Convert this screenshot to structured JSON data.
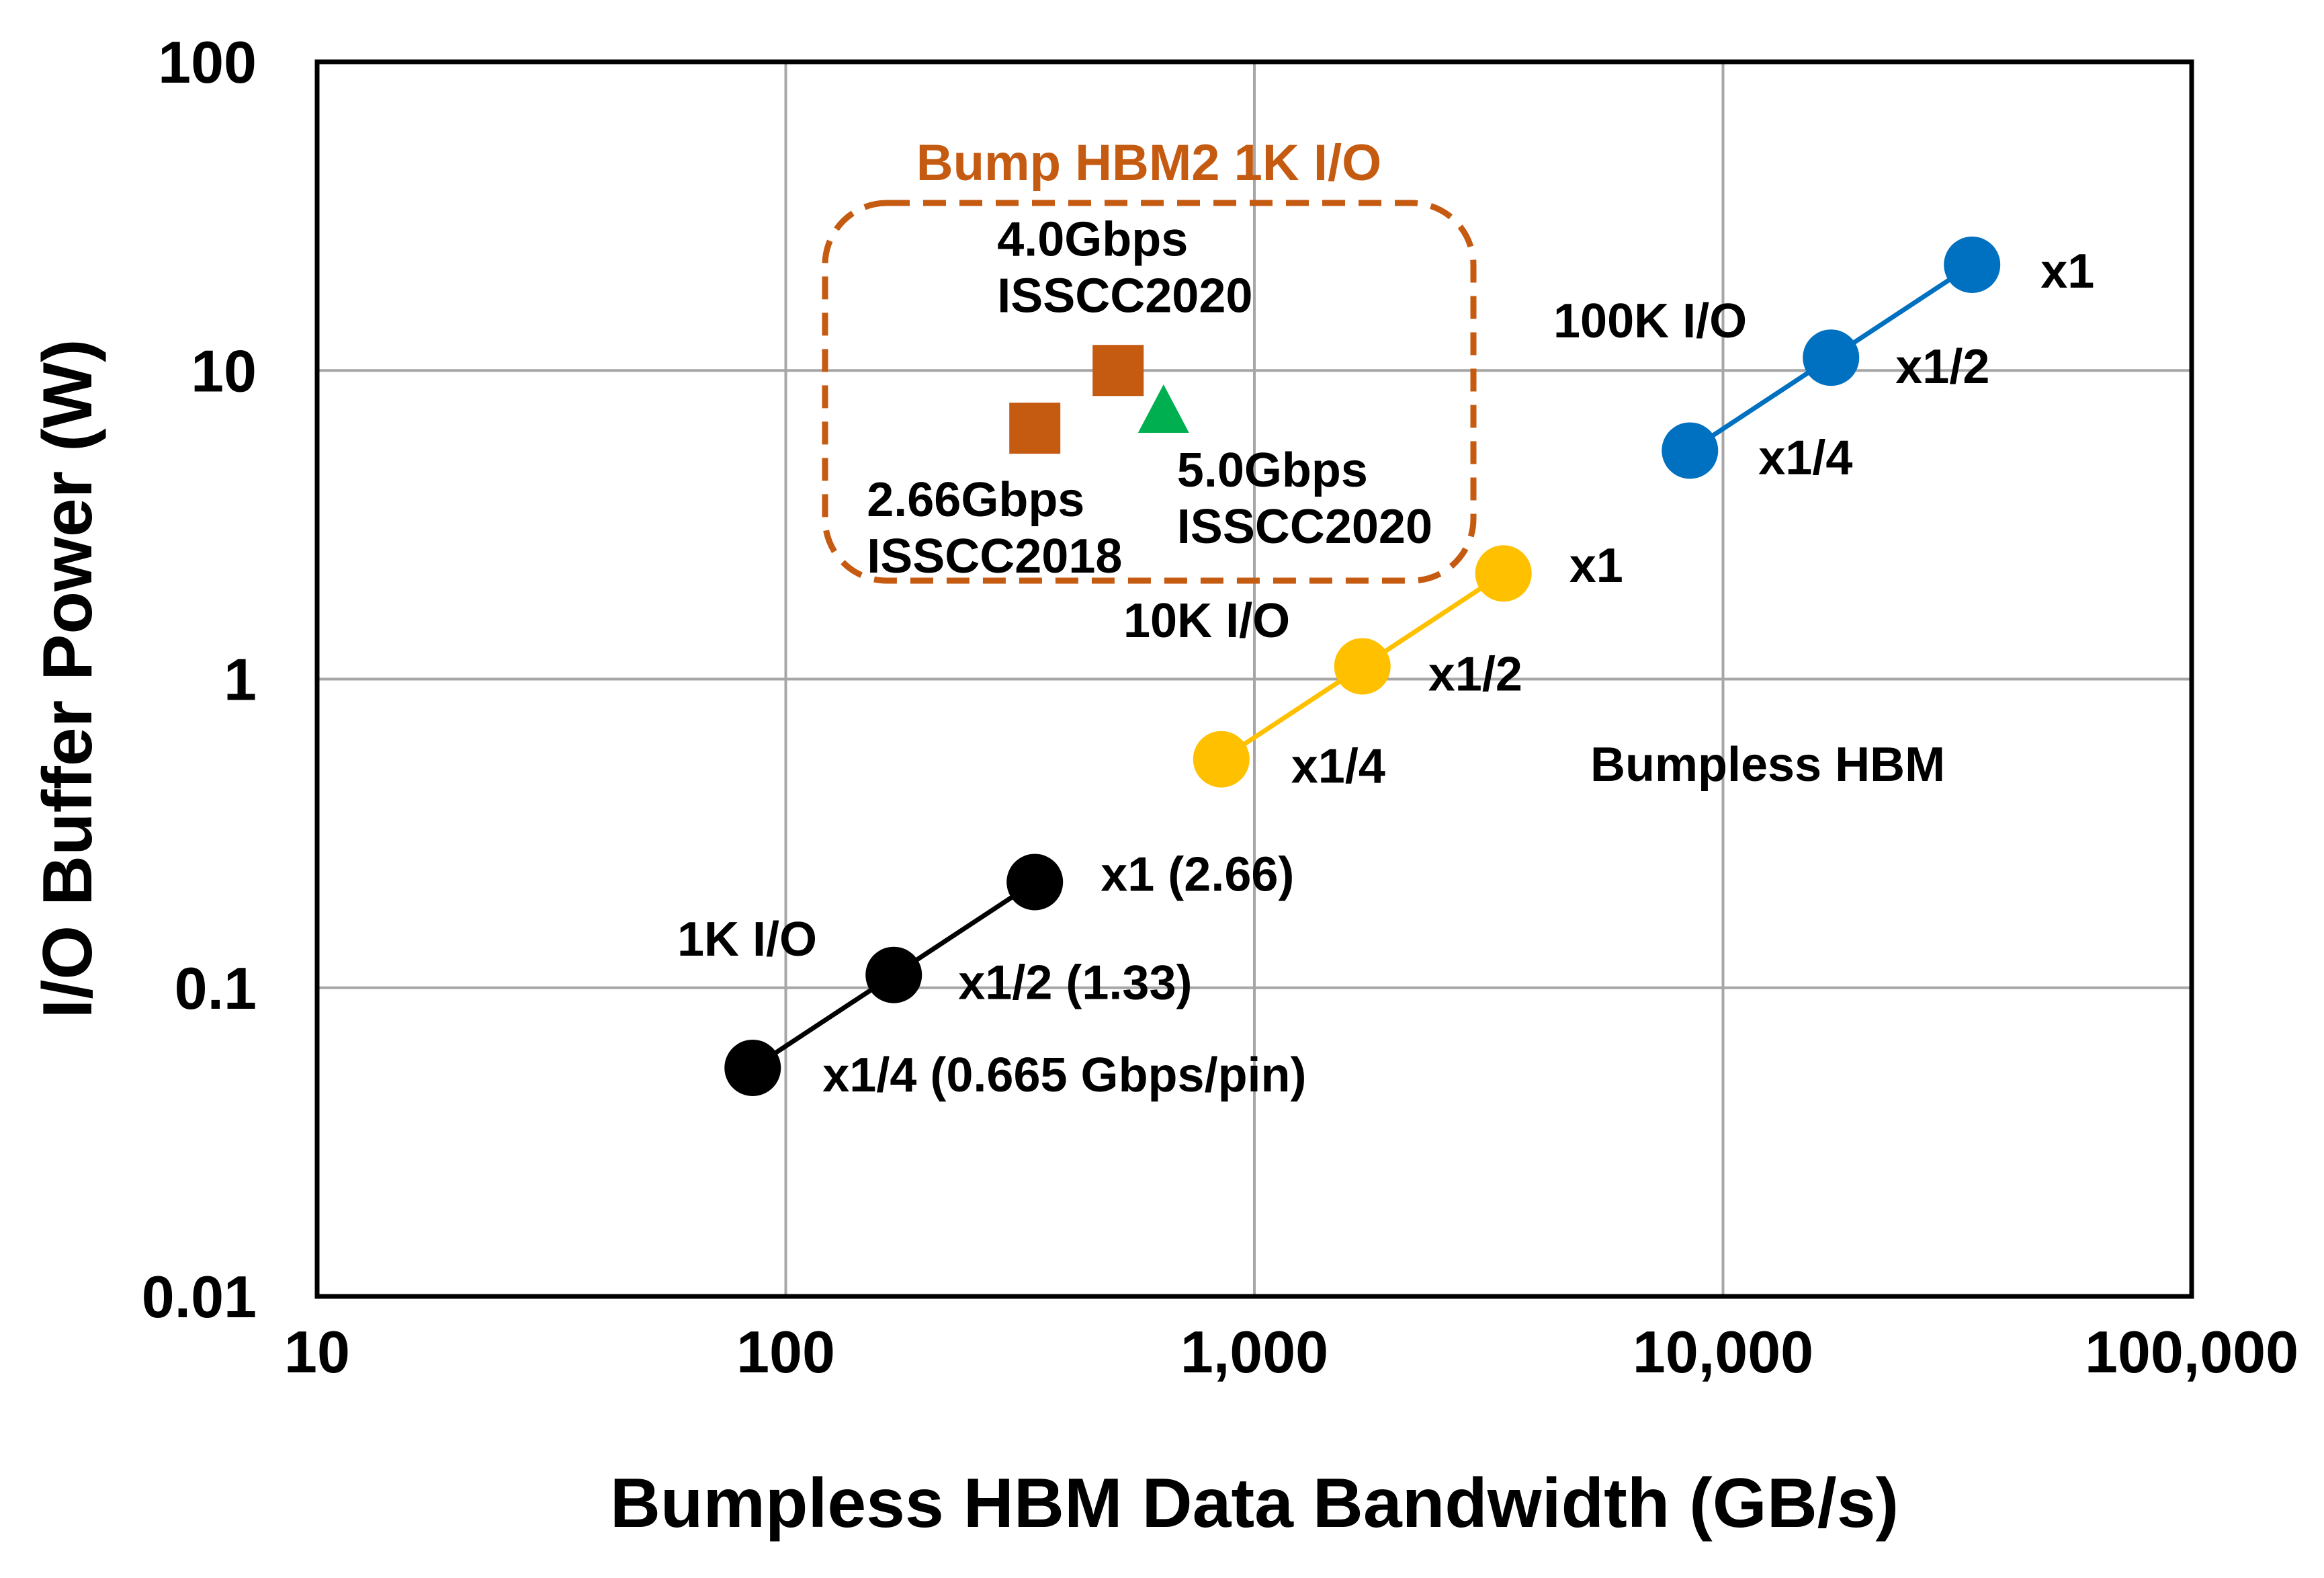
{
  "chart_data": {
    "type": "scatter",
    "title": "",
    "xlabel": "Bumpless HBM Data Bandwidth (GB/s)",
    "ylabel": "I/O Buffer Power (W)",
    "xscale": "log",
    "yscale": "log",
    "xlim": [
      10,
      100000
    ],
    "ylim": [
      0.01,
      100
    ],
    "grid": true,
    "x_ticks": [
      10,
      100,
      1000,
      10000,
      100000
    ],
    "x_tick_labels": [
      "10",
      "100",
      "1,000",
      "10,000",
      "100,000"
    ],
    "y_ticks": [
      0.01,
      0.1,
      1,
      10,
      100
    ],
    "y_tick_labels": [
      "0.01",
      "0.1",
      "1",
      "10",
      "100"
    ],
    "series": [
      {
        "name": "1K I/O",
        "color": "#000000",
        "marker": "circle",
        "line": true,
        "points": [
          {
            "x": 85,
            "y": 0.055,
            "label": "x1/4 (0.665 Gbps/pin)"
          },
          {
            "x": 170,
            "y": 0.11,
            "label": "x1/2 (1.33)"
          },
          {
            "x": 340,
            "y": 0.22,
            "label": "x1 (2.66)"
          }
        ]
      },
      {
        "name": "10K I/O",
        "color": "#FFC000",
        "marker": "circle",
        "line": true,
        "points": [
          {
            "x": 850,
            "y": 0.55,
            "label": "x1/4"
          },
          {
            "x": 1700,
            "y": 1.1,
            "label": "x1/2"
          },
          {
            "x": 3400,
            "y": 2.2,
            "label": "x1"
          }
        ]
      },
      {
        "name": "100K I/O",
        "color": "#0070C0",
        "marker": "circle",
        "line": true,
        "points": [
          {
            "x": 8500,
            "y": 5.5,
            "label": "x1/4"
          },
          {
            "x": 17000,
            "y": 11,
            "label": "x1/2"
          },
          {
            "x": 34000,
            "y": 22,
            "label": "x1"
          }
        ]
      },
      {
        "name": "Bump HBM2 1K I/O",
        "color": "#C55A11",
        "marker": "square",
        "line": false,
        "points": [
          {
            "x": 340,
            "y": 6.5,
            "label_lines": [
              "2.66Gbps",
              "ISSCC2018"
            ]
          },
          {
            "x": 512,
            "y": 10,
            "label_lines": [
              "4.0Gbps",
              "ISSCC2020"
            ]
          }
        ]
      },
      {
        "name": "Bump HBM2 1K I/O 5.0Gbps",
        "color": "#00B050",
        "marker": "triangle",
        "line": false,
        "points": [
          {
            "x": 640,
            "y": 7.3,
            "label_lines": [
              "5.0Gbps",
              "ISSCC2020"
            ]
          }
        ]
      }
    ],
    "annotations": {
      "box_label": "Bump HBM2 1K I/O",
      "region_label": "Bumpless HBM",
      "series_labels": [
        "1K I/O",
        "10K I/O",
        "100K I/O"
      ]
    }
  }
}
